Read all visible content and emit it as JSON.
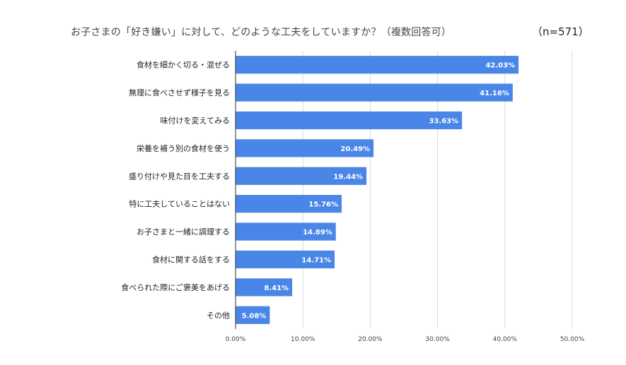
{
  "chart_data": {
    "type": "bar",
    "orientation": "horizontal",
    "title": "お子さまの「好き嫌い」に対して、どのような工夫をしていますか？（複数回答可）",
    "sample_size": "（n=571）",
    "categories": [
      "食材を細かく切る・混ぜる",
      "無理に食べさせず様子を見る",
      "味付けを変えてみる",
      "栄養を補う別の食材を使う",
      "盛り付けや見た目を工夫する",
      "特に工夫していることはない",
      "お子さまと一緒に調理する",
      "食材に関する話をする",
      "食べられた際にご褒美をあげる",
      "その他"
    ],
    "values": [
      42.03,
      41.16,
      33.63,
      20.49,
      19.44,
      15.76,
      14.89,
      14.71,
      8.41,
      5.08
    ],
    "value_labels": [
      "42.03%",
      "41.16%",
      "33.63%",
      "20.49%",
      "19.44%",
      "15.76%",
      "14.89%",
      "14.71%",
      "8.41%",
      "5.08%"
    ],
    "xlim": [
      0,
      50
    ],
    "x_ticks": [
      "0.00%",
      "10.00%",
      "20.00%",
      "30.00%",
      "40.00%",
      "50.00%"
    ],
    "grid": "vertical",
    "bar_color": "#4a86e8"
  }
}
